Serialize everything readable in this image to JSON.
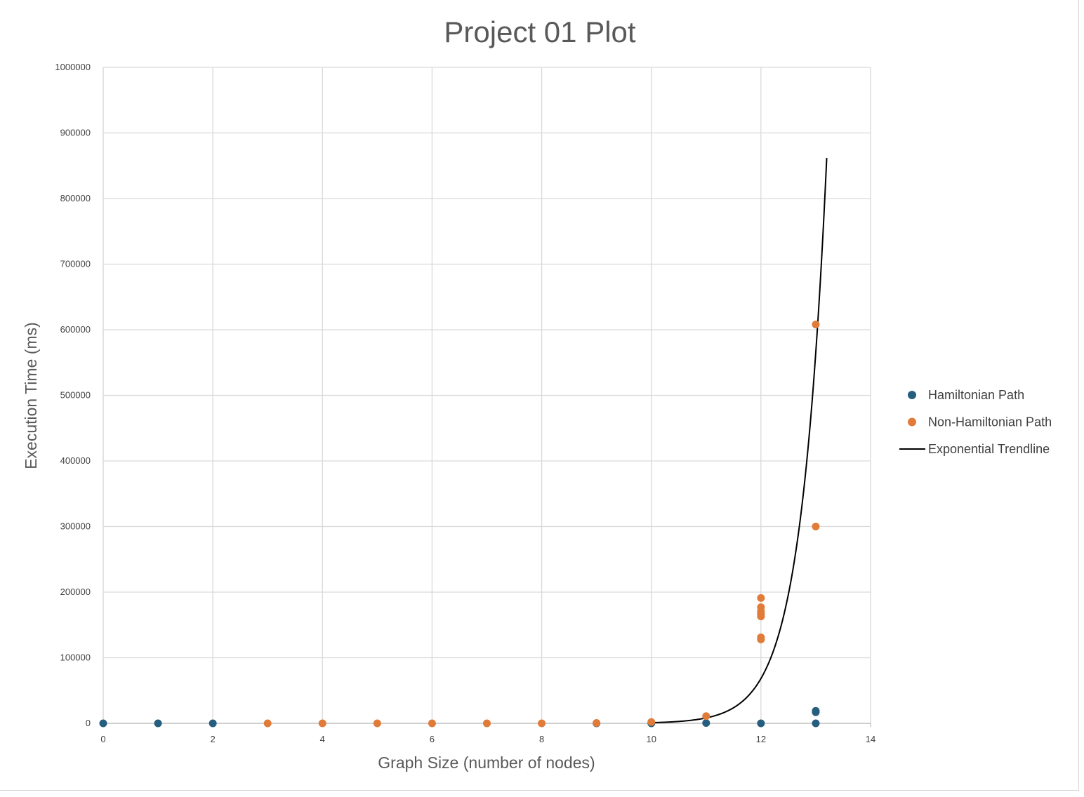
{
  "chart_data": {
    "type": "scatter",
    "title": "Project 01 Plot",
    "xlabel": "Graph Size (number of nodes)",
    "ylabel": "Execution Time (ms)",
    "xlim": [
      0,
      14
    ],
    "ylim": [
      0,
      1000000
    ],
    "x_ticks": [
      "0",
      "2",
      "4",
      "6",
      "8",
      "10",
      "12",
      "14"
    ],
    "y_ticks": [
      "0",
      "100000",
      "200000",
      "300000",
      "400000",
      "500000",
      "600000",
      "700000",
      "800000",
      "900000",
      "1000000"
    ],
    "grid": true,
    "legend_position": "right",
    "series": [
      {
        "name": "Hamiltonian Path",
        "color": "#255e7e",
        "points": [
          [
            0,
            0
          ],
          [
            1,
            0
          ],
          [
            2,
            0
          ],
          [
            9,
            0
          ],
          [
            10,
            0
          ],
          [
            11,
            500
          ],
          [
            12,
            0
          ],
          [
            13,
            0
          ],
          [
            13,
            17000
          ],
          [
            13,
            19000
          ]
        ]
      },
      {
        "name": "Non-Hamiltonian Path",
        "color": "#e07b39",
        "points": [
          [
            3,
            0
          ],
          [
            4,
            0
          ],
          [
            5,
            0
          ],
          [
            6,
            0
          ],
          [
            7,
            0
          ],
          [
            8,
            0
          ],
          [
            9,
            500
          ],
          [
            10,
            2000
          ],
          [
            11,
            11000
          ],
          [
            12,
            128000
          ],
          [
            12,
            131000
          ],
          [
            12,
            163000
          ],
          [
            12,
            167000
          ],
          [
            12,
            171000
          ],
          [
            12,
            177000
          ],
          [
            12,
            191000
          ],
          [
            13,
            300000
          ],
          [
            13,
            608000
          ]
        ]
      },
      {
        "name": "Exponential Trendline",
        "color": "#000000",
        "type": "line",
        "x_range": [
          10,
          13.2
        ],
        "y_at_x": [
          [
            10,
            1000
          ],
          [
            11,
            10500
          ],
          [
            12,
            65000
          ],
          [
            13,
            500000
          ],
          [
            13.2,
            862000
          ]
        ]
      }
    ]
  }
}
